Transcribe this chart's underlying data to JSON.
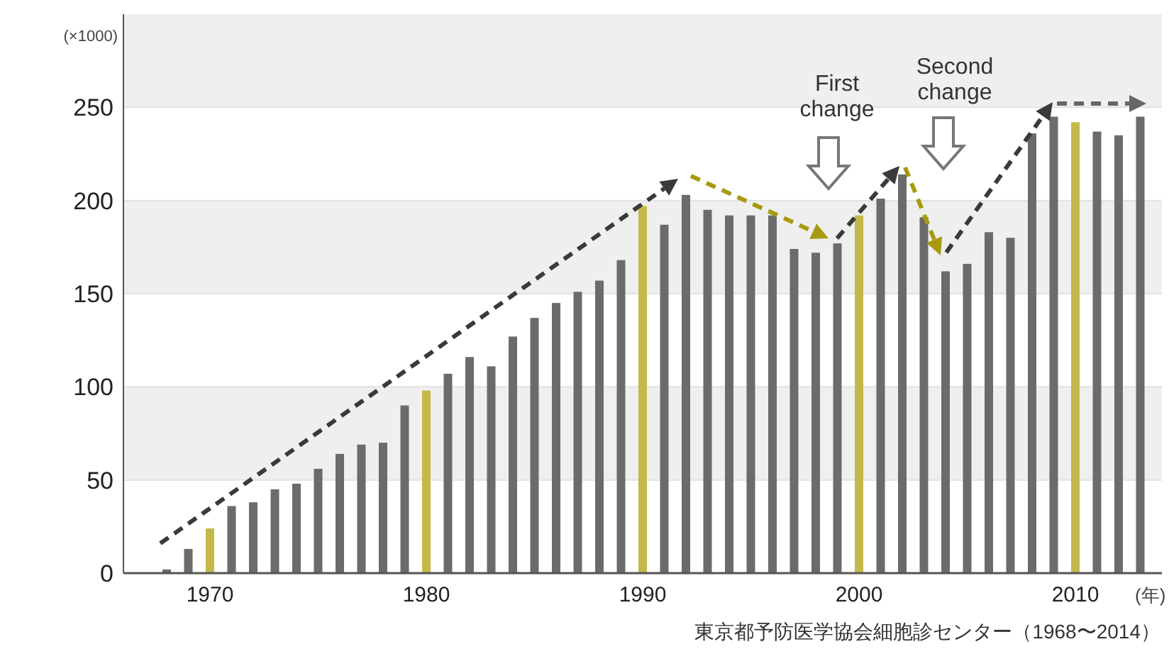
{
  "chart_data": {
    "type": "bar",
    "ylabel": "(×1000)",
    "xlabel": "(年)",
    "x": [
      1968,
      1969,
      1970,
      1971,
      1972,
      1973,
      1974,
      1975,
      1976,
      1977,
      1978,
      1979,
      1980,
      1981,
      1982,
      1983,
      1984,
      1985,
      1986,
      1987,
      1988,
      1989,
      1990,
      1991,
      1992,
      1993,
      1994,
      1995,
      1996,
      1997,
      1998,
      1999,
      2000,
      2001,
      2002,
      2003,
      2004,
      2005,
      2006,
      2007,
      2008,
      2009,
      2010,
      2011,
      2012,
      2013
    ],
    "values": [
      2,
      13,
      24,
      36,
      38,
      45,
      48,
      56,
      64,
      69,
      70,
      90,
      98,
      107,
      116,
      111,
      127,
      137,
      145,
      151,
      157,
      168,
      197,
      187,
      203,
      195,
      192,
      192,
      192,
      174,
      172,
      177,
      192,
      201,
      214,
      191,
      162,
      166,
      183,
      180,
      236,
      245,
      242,
      237,
      235,
      245
    ],
    "colors": [
      "#6b6b6b",
      "#6b6b6b",
      "#c4b84a",
      "#6b6b6b",
      "#6b6b6b",
      "#6b6b6b",
      "#6b6b6b",
      "#6b6b6b",
      "#6b6b6b",
      "#6b6b6b",
      "#6b6b6b",
      "#6b6b6b",
      "#c4b84a",
      "#6b6b6b",
      "#6b6b6b",
      "#6b6b6b",
      "#6b6b6b",
      "#6b6b6b",
      "#6b6b6b",
      "#6b6b6b",
      "#6b6b6b",
      "#6b6b6b",
      "#c4b84a",
      "#6b6b6b",
      "#6b6b6b",
      "#6b6b6b",
      "#6b6b6b",
      "#6b6b6b",
      "#6b6b6b",
      "#6b6b6b",
      "#6b6b6b",
      "#6b6b6b",
      "#c4b84a",
      "#6b6b6b",
      "#6b6b6b",
      "#6b6b6b",
      "#6b6b6b",
      "#6b6b6b",
      "#6b6b6b",
      "#6b6b6b",
      "#6b6b6b",
      "#6b6b6b",
      "#c4b84a",
      "#6b6b6b",
      "#6b6b6b",
      "#6b6b6b"
    ],
    "xlim": [
      1966,
      2014
    ],
    "xticks": [
      1970,
      1980,
      1990,
      2000,
      2010
    ],
    "ylim": [
      0,
      300
    ],
    "yticks": [
      0,
      50,
      100,
      150,
      200,
      250
    ],
    "grid": "y",
    "annotations": [
      "First\nchange",
      "Second\nchange",
      "東京都予防医学協会細胞診センター（1968〜2014）"
    ]
  }
}
